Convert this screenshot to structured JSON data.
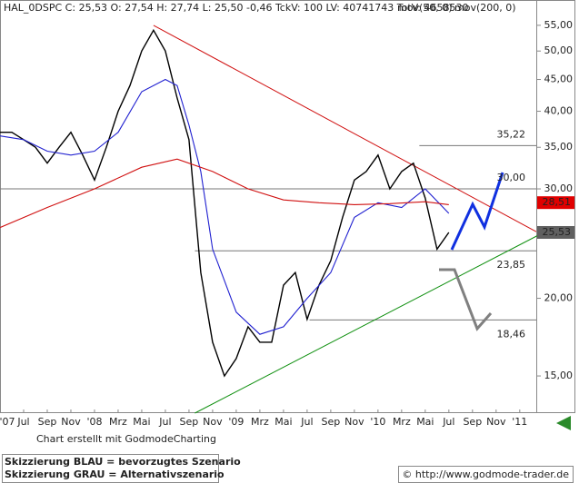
{
  "chart_data": {
    "type": "line",
    "title": "HAL_0DSPC C: 25,53 O: 27,54 H: 27,74 L: 25,50 -0,46 TckV: 100 LV: 40741743 TotV: 4658530",
    "legend_color": "#e0b070",
    "log_scale": true,
    "xlim": [
      4,
      49.4
    ],
    "ylim": [
      13.07,
      59.4
    ],
    "xticks": [
      {
        "value": 4,
        "label": "'07"
      },
      {
        "value": 6,
        "label": "Jul"
      },
      {
        "value": 8,
        "label": "Sep"
      },
      {
        "value": 10,
        "label": "Nov"
      },
      {
        "value": 12,
        "label": "'08"
      },
      {
        "value": 14,
        "label": "Mrz"
      },
      {
        "value": 16,
        "label": "Mai"
      },
      {
        "value": 18,
        "label": "Jul"
      },
      {
        "value": 20,
        "label": "Sep"
      },
      {
        "value": 22,
        "label": "Nov"
      },
      {
        "value": 24,
        "label": "'09"
      },
      {
        "value": 26,
        "label": "Mrz"
      },
      {
        "value": 28,
        "label": "Mai"
      },
      {
        "value": 30,
        "label": "Jul"
      },
      {
        "value": 32,
        "label": "Sep"
      },
      {
        "value": 34,
        "label": "Nov"
      },
      {
        "value": 36,
        "label": "'10"
      },
      {
        "value": 38,
        "label": "Mrz"
      },
      {
        "value": 40,
        "label": "Mai"
      },
      {
        "value": 42,
        "label": "Jul"
      },
      {
        "value": 44,
        "label": "Sep"
      },
      {
        "value": 46,
        "label": "Nov"
      },
      {
        "value": 48,
        "label": "'11"
      }
    ],
    "yticks": [
      {
        "value": 15,
        "label": "15,00"
      },
      {
        "value": 20,
        "label": "20,00"
      },
      {
        "value": 30,
        "label": "30,00"
      },
      {
        "value": 35,
        "label": "35,00"
      },
      {
        "value": 40,
        "label": "40,00"
      },
      {
        "value": 45,
        "label": "45,00"
      },
      {
        "value": 50,
        "label": "50,00"
      },
      {
        "value": 55,
        "label": "55,00"
      }
    ],
    "series": [
      {
        "color": "#000000",
        "x": [
          4,
          5,
          6,
          7,
          8,
          9,
          10,
          11,
          12,
          13,
          14,
          15,
          16,
          17,
          18,
          19,
          20,
          21,
          22,
          23,
          24,
          25,
          26,
          27,
          28,
          29,
          30,
          31,
          32,
          33,
          34,
          35,
          36,
          37,
          38,
          39,
          40,
          41,
          42
        ],
        "values": [
          37,
          37,
          36,
          35,
          33,
          35,
          37,
          34,
          31,
          35,
          40,
          44,
          50,
          54,
          50,
          42,
          36,
          22,
          17,
          15,
          16,
          18,
          17,
          17,
          21,
          22,
          18.5,
          21,
          23,
          27,
          31,
          32,
          34,
          30,
          32,
          33,
          29,
          24,
          25.53
        ]
      },
      {
        "name": "mov(50, 0)",
        "color": "#2020d0",
        "x": [
          4,
          6,
          8,
          10,
          12,
          14,
          16,
          18,
          19,
          20,
          21,
          22,
          24,
          26,
          28,
          30,
          32,
          34,
          36,
          38,
          40,
          42
        ],
        "values": [
          36.5,
          36,
          34.5,
          34,
          34.5,
          37,
          43,
          45,
          44,
          38,
          32,
          24,
          19,
          17.5,
          18,
          20,
          22,
          27,
          28.5,
          28,
          30,
          27.4
        ]
      },
      {
        "name": "mov(200, 0)",
        "color": "#d01010",
        "x": [
          4,
          8,
          12,
          16,
          19,
          22,
          25,
          28,
          31,
          34,
          37,
          40,
          42
        ],
        "values": [
          26,
          28,
          30,
          32.5,
          33.5,
          32,
          30,
          28.8,
          28.5,
          28.3,
          28.4,
          28.6,
          28.3
        ]
      }
    ],
    "trend_lines": [
      {
        "color": "#d01010",
        "x": [
          17,
          49.4
        ],
        "values": [
          55,
          25.6
        ]
      },
      {
        "color": "#109010",
        "x": [
          20.5,
          49.8
        ],
        "values": [
          13.07,
          25.4
        ]
      }
    ],
    "levels": [
      {
        "value": 35.22,
        "label": "35,22",
        "x_start": 39.5
      },
      {
        "value": 30,
        "label": "30,00",
        "x_start": 4
      },
      {
        "value": 23.85,
        "label": "23,85",
        "x_start": 20.5
      },
      {
        "value": 18.46,
        "label": "18,46",
        "x_start": 30.2
      }
    ],
    "price_tags": [
      {
        "value": 28.51,
        "label": "28,51",
        "color": "#e00000"
      },
      {
        "value": 25.53,
        "label": "25,53",
        "color": "#606060"
      }
    ],
    "credit": "Chart erstellt mit GodmodeCharting",
    "notes": [
      "Skizzierung BLAU = bevorzugtes Szenario",
      "Skizzierung GRAU = Alternativszenario"
    ],
    "source": "© http://www.godmode-trader.de"
  }
}
